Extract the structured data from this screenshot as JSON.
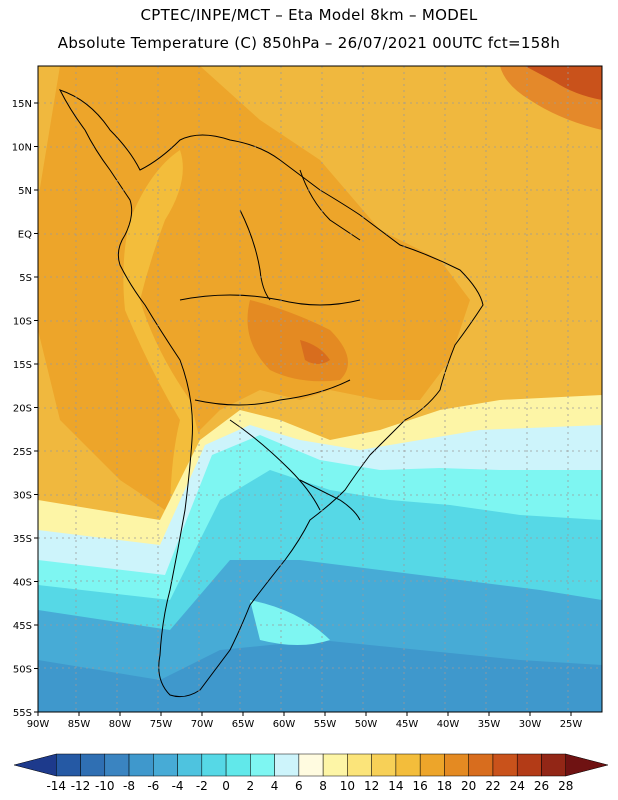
{
  "header": {
    "line1": "CPTEC/INPE/MCT –  Eta Model 8km – MODEL",
    "line2": "Absolute Temperature (C) 850hPa – 26/07/2021 00UTC fct=158h"
  },
  "map": {
    "lat_labels": [
      "15N",
      "10N",
      "5N",
      "EQ",
      "5S",
      "10S",
      "15S",
      "20S",
      "25S",
      "30S",
      "35S",
      "40S",
      "45S",
      "50S",
      "55S"
    ],
    "lon_labels": [
      "90W",
      "85W",
      "80W",
      "75W",
      "70W",
      "65W",
      "60W",
      "55W",
      "50W",
      "45W",
      "40W",
      "35W",
      "30W",
      "25W"
    ]
  },
  "colorbar": {
    "ticks": [
      "-14",
      "-12",
      "-10",
      "-8",
      "-6",
      "-4",
      "-2",
      "0",
      "2",
      "4",
      "6",
      "8",
      "10",
      "12",
      "14",
      "16",
      "18",
      "20",
      "22",
      "24",
      "26",
      "28"
    ],
    "colors": [
      "#1d3a8c",
      "#2559a4",
      "#2f6fb3",
      "#3a84c1",
      "#3f98cc",
      "#47abd6",
      "#4ec3df",
      "#56d8e6",
      "#61e8ea",
      "#7ef6f2",
      "#cdf4fb",
      "#fffbe0",
      "#fdf5a6",
      "#fbe47a",
      "#f7d057",
      "#f3bd3b",
      "#eda52a",
      "#e48a22",
      "#d86d1e",
      "#c9521b",
      "#b33b17",
      "#922616",
      "#6f1212"
    ]
  },
  "colors": {
    "cold_ocean": "#4aa8d4",
    "warm_land": "#eea734",
    "border": "#000000",
    "grid": "#9a9a9a"
  }
}
